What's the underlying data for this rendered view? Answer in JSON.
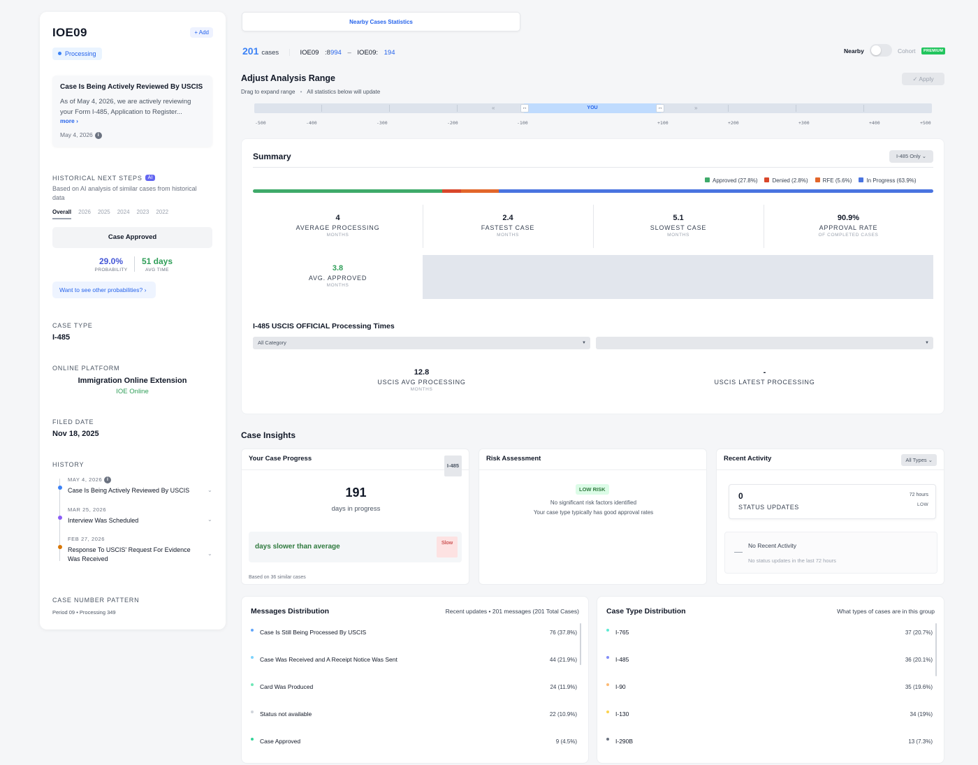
{
  "case": {
    "id": "IOE09",
    "add_label": "+ Add",
    "status_badge": "Processing",
    "status_title": "Case Is Being Actively Reviewed By USCIS",
    "status_body": "As of May 4, 2026, we are actively reviewing your Form I-485, Application to Register...",
    "more_label": "more ›",
    "status_date": "May 4, 2026"
  },
  "historical": {
    "label": "HISTORICAL NEXT STEPS",
    "ai_badge": "AI",
    "subtitle": "Based on AI analysis of similar cases from historical data",
    "tabs": [
      "Overall",
      "2026",
      "2025",
      "2024",
      "2023",
      "2022"
    ],
    "next_step": "Case Approved",
    "probability_value": "29.0%",
    "probability_label": "PROBABILITY",
    "avg_time_value": "51 days",
    "avg_time_label": "AVG TIME",
    "other_link": "Want to see other probabilities? ›"
  },
  "details": {
    "case_type_label": "CASE TYPE",
    "case_type": "I-485",
    "platform_label": "ONLINE PLATFORM",
    "platform": "Immigration Online Extension",
    "platform_short": "IOE Online",
    "filed_label": "FILED DATE",
    "filed": "Nov 18, 2025",
    "history_label": "HISTORY",
    "pattern_label": "CASE NUMBER PATTERN",
    "pattern": "Period 09 • Processing 349"
  },
  "history": [
    {
      "date": "MAY 4, 2026",
      "text": "Case Is Being Actively Reviewed By USCIS",
      "color": "#3b82f6"
    },
    {
      "date": "MAR 25, 2026",
      "text": "Interview Was Scheduled",
      "color": "#8b5cf6"
    },
    {
      "date": "FEB 27, 2026",
      "text": "Response To USCIS' Request For Evidence Was Received",
      "color": "#d97706"
    }
  ],
  "topbar": {
    "nearby_button": "Nearby Cases Statistics",
    "count": "201",
    "count_unit": "cases",
    "range_start_prefix": "IOE09",
    "range_start_a": ":8",
    "range_start_b": "994",
    "range_sep": "–",
    "range_end_prefix": "IOE09:",
    "range_end_b": "194",
    "nearby_label": "Nearby",
    "cohort_label": "Cohort",
    "premium": "PREMIUM"
  },
  "range": {
    "title": "Adjust Analysis Range",
    "subtitle_a": "Drag to expand range",
    "subtitle_b": "All statistics below will update",
    "apply": "✓ Apply",
    "you": "YOU",
    "left_arrows": "«",
    "right_arrows": "»",
    "ticks": [
      "-500",
      "-400",
      "-300",
      "-200",
      "-100",
      "+100",
      "+200",
      "+300",
      "+400",
      "+500"
    ]
  },
  "summary": {
    "title": "Summary",
    "filter": "I-485 Only ⌄",
    "legend": [
      {
        "label": "Approved (27.8%)",
        "color": "#3faa6a",
        "pct": 27.8
      },
      {
        "label": "Denied (2.8%)",
        "color": "#d9472b",
        "pct": 2.8
      },
      {
        "label": "RFE (5.6%)",
        "color": "#e2662a",
        "pct": 5.6
      },
      {
        "label": "In Progress (63.9%)",
        "color": "#4a74e0",
        "pct": 63.9
      }
    ],
    "stats": [
      {
        "value": "4",
        "label": "AVERAGE PROCESSING",
        "unit": "MONTHS"
      },
      {
        "value": "2.4",
        "label": "FASTEST CASE",
        "unit": "MONTHS"
      },
      {
        "value": "5.1",
        "label": "SLOWEST CASE",
        "unit": "MONTHS"
      },
      {
        "value": "90.9%",
        "label": "APPROVAL RATE",
        "unit": "OF COMPLETED CASES"
      }
    ],
    "approved_stat": {
      "value": "3.8",
      "label": "AVG. APPROVED",
      "unit": "MONTHS"
    },
    "uscis_title": "I-485 USCIS OFFICIAL Processing Times",
    "category_select": "All Category",
    "uscis_avg": {
      "value": "12.8",
      "label": "USCIS AVG PROCESSING",
      "unit": "MONTHS"
    },
    "uscis_latest": {
      "value": "-",
      "label": "USCIS LATEST PROCESSING"
    }
  },
  "insights": {
    "title": "Case Insights",
    "progress": {
      "title": "Your Case Progress",
      "tag": "I-485",
      "days": "191",
      "days_label": "days in progress",
      "slower": "days slower than average",
      "slow_badge": "Slow",
      "footnote": "Based on 36 similar cases"
    },
    "risk": {
      "title": "Risk Assessment",
      "badge": "LOW RISK",
      "line1": "No significant risk factors identified",
      "line2": "Your case type typically has good approval rates"
    },
    "activity": {
      "title": "Recent Activity",
      "filter": "All Types ⌄",
      "count": "0",
      "count_label": "STATUS UPDATES",
      "window": "72 hours",
      "level": "LOW",
      "empty_title": "No Recent Activity",
      "empty_sub": "No status updates in the last 72 hours"
    }
  },
  "messages": {
    "title": "Messages Distribution",
    "subtitle": "Recent updates • 201 messages (201 Total Cases)",
    "rows": [
      {
        "label": "Case Is Still Being Processed By USCIS",
        "value": "76 (37.8%)",
        "color": "#60a5fa"
      },
      {
        "label": "Case Was Received and A Receipt Notice Was Sent",
        "value": "44 (21.9%)",
        "color": "#7dd3fc"
      },
      {
        "label": "Card Was Produced",
        "value": "24 (11.9%)",
        "color": "#6ee7b7"
      },
      {
        "label": "Status not available",
        "value": "22 (10.9%)",
        "color": "#d1d5db"
      },
      {
        "label": "Case Approved",
        "value": "9 (4.5%)",
        "color": "#34d399"
      }
    ]
  },
  "case_types": {
    "title": "Case Type Distribution",
    "subtitle": "What types of cases are in this group",
    "rows": [
      {
        "label": "I-765",
        "value": "37 (20.7%)",
        "color": "#5eead4"
      },
      {
        "label": "I-485",
        "value": "36 (20.1%)",
        "color": "#818cf8"
      },
      {
        "label": "I-90",
        "value": "35 (19.6%)",
        "color": "#fdba74"
      },
      {
        "label": "I-130",
        "value": "34 (19%)",
        "color": "#fcd34d"
      },
      {
        "label": "I-290B",
        "value": "13 (7.3%)",
        "color": "#6b7280"
      }
    ]
  }
}
